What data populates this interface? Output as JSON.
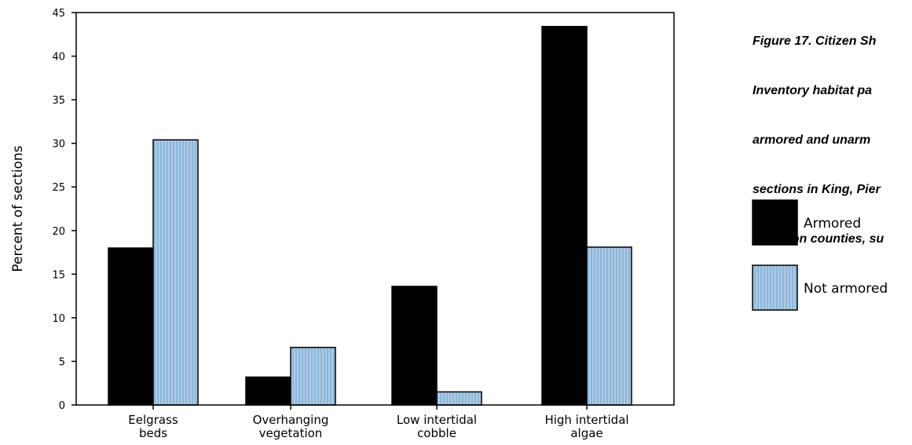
{
  "caption": {
    "lines": [
      "Figure 17. Citizen Sh",
      "Inventory habitat pa",
      "armored and unarm",
      "sections in King, Pier",
      "Thurston counties, su"
    ]
  },
  "colors": {
    "armored": "#000000",
    "not_armored": "#88b8dc",
    "not_armored_stripe": "#b3c9e3"
  },
  "chart_data": {
    "type": "bar",
    "title": "",
    "xlabel": "",
    "ylabel": "Percent of sections",
    "ylim": [
      0,
      45
    ],
    "yticks": [
      0,
      5,
      10,
      15,
      20,
      25,
      30,
      35,
      40,
      45
    ],
    "ytick_labels": [
      "0",
      "5",
      "10",
      "15",
      "20",
      "25",
      "30",
      "35",
      "40",
      "45"
    ],
    "grid": false,
    "legend_position": "right",
    "categories": [
      [
        "Eelgrass",
        "beds"
      ],
      [
        "Overhanging",
        "vegetation"
      ],
      [
        "Low intertidal",
        "cobble"
      ],
      [
        "High intertidal",
        "algae"
      ]
    ],
    "series": [
      {
        "name": "Armored",
        "values": [
          18.0,
          3.2,
          13.6,
          43.4
        ]
      },
      {
        "name": "Not armored",
        "values": [
          30.4,
          6.6,
          1.5,
          18.1
        ]
      }
    ]
  }
}
